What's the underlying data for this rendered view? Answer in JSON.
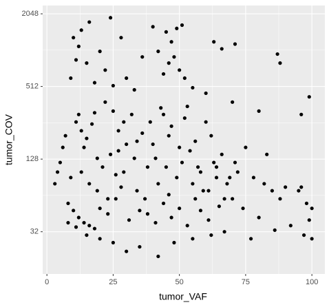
{
  "chart_data": {
    "type": "scatter",
    "x_label": "tumor_VAF",
    "y_label": "tumor_COV",
    "xlim": [
      -1.6,
      104.9
    ],
    "ylim": [
      14.3,
      2400
    ],
    "xticks": [
      0,
      25,
      50,
      75,
      100
    ],
    "yticks": [
      32,
      128,
      512,
      2048
    ],
    "x_minor_ticks": [
      12.5,
      37.5,
      62.5,
      87.5
    ],
    "y_minor_ticks": [
      64,
      256,
      1024
    ],
    "log_y": true,
    "grid": true,
    "panel_color": "#ebebeb",
    "color": "#000000",
    "x": [
      13,
      16,
      24,
      10,
      12,
      20,
      28,
      40,
      45,
      47,
      49,
      51,
      42,
      46,
      44,
      48,
      50,
      36,
      15,
      11,
      9,
      22,
      30,
      18,
      25,
      52,
      63,
      71,
      66,
      87,
      88,
      99,
      96,
      80,
      70,
      60,
      55,
      33,
      72,
      75,
      78,
      82,
      85,
      88,
      90,
      95,
      98,
      100,
      97,
      100,
      92,
      86,
      80,
      77,
      96,
      99,
      83,
      74,
      70,
      35,
      42,
      30,
      25,
      20,
      15,
      11,
      8,
      48,
      55,
      62,
      67,
      5,
      7,
      9,
      12,
      14,
      17,
      19,
      22,
      24,
      27,
      29,
      32,
      34,
      37,
      39,
      41,
      43,
      46,
      49,
      52,
      54,
      57,
      59,
      62,
      64,
      66,
      68,
      8,
      10,
      12,
      14,
      16,
      18,
      20,
      23,
      26,
      28,
      31,
      35,
      38,
      41,
      44,
      47,
      50,
      53,
      56,
      58,
      61,
      65,
      6,
      11,
      13,
      15,
      21,
      25,
      27,
      33,
      36,
      40,
      44,
      45,
      47,
      51,
      53,
      56,
      60,
      63,
      3,
      4,
      16,
      19,
      23,
      26,
      30,
      34,
      38,
      42,
      46,
      50,
      55,
      58,
      61,
      64,
      67,
      69,
      71,
      13,
      18,
      29
    ],
    "values": [
      1500,
      1750,
      1900,
      1300,
      1100,
      1000,
      1300,
      1600,
      1450,
      1200,
      1550,
      1650,
      1000,
      800,
      650,
      900,
      700,
      900,
      800,
      850,
      600,
      700,
      600,
      550,
      520,
      600,
      1200,
      1150,
      1050,
      950,
      800,
      420,
      300,
      320,
      380,
      450,
      500,
      480,
      100,
      160,
      90,
      80,
      70,
      60,
      75,
      70,
      55,
      50,
      30,
      28,
      36,
      33,
      42,
      28,
      75,
      40,
      140,
      50,
      60,
      24,
      20,
      22,
      26,
      28,
      30,
      35,
      38,
      26,
      28,
      30,
      32,
      120,
      200,
      90,
      300,
      160,
      250,
      70,
      380,
      140,
      220,
      100,
      300,
      180,
      60,
      260,
      130,
      340,
      200,
      90,
      280,
      150,
      110,
      70,
      200,
      90,
      140,
      80,
      55,
      48,
      42,
      38,
      36,
      34,
      50,
      45,
      60,
      75,
      40,
      48,
      45,
      38,
      55,
      42,
      50,
      36,
      60,
      48,
      40,
      52,
      160,
      260,
      100,
      190,
      110,
      320,
      150,
      130,
      210,
      170,
      300,
      110,
      240,
      120,
      350,
      180,
      260,
      120,
      80,
      100,
      80,
      130,
      60,
      95,
      170,
      70,
      110,
      80,
      65,
      160,
      80,
      100,
      70,
      110,
      60,
      90,
      120,
      220,
      310,
      260
    ]
  }
}
